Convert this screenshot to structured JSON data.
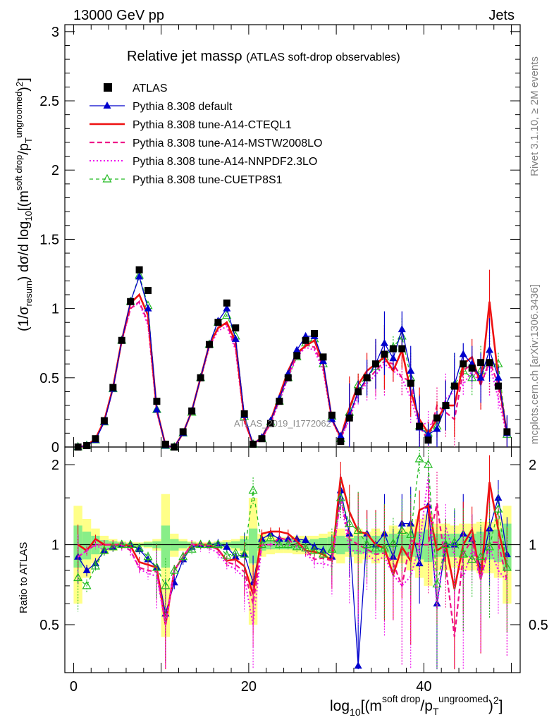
{
  "header": {
    "left": "13000 GeV pp",
    "right": "Jets"
  },
  "title": {
    "main": "Relative jet mass",
    "rho": "ρ",
    "sub": "(ATLAS soft-drop observables)"
  },
  "side": {
    "rivet": "Rivet 3.1.10, ≥ 2M events",
    "mcplots": "mcplots.cern.ch [arXiv:1306.3436]"
  },
  "watermark": "ATLAS_2019_I1772062",
  "axes": {
    "ylabel_main": "(1/σresum) dσ/d log10[(m soft drop/pT ungroomed)2]",
    "ylabel_ratio": "Ratio to ATLAS",
    "xlabel": "log10[(m soft drop/pT ungroomed)2]"
  },
  "legend": [
    {
      "label": "ATLAS",
      "color": "#000000"
    },
    {
      "label": "Pythia 8.308 default",
      "color": "#0000cc"
    },
    {
      "label": "Pythia 8.308 tune-A14-CTEQL1",
      "color": "#ee1111"
    },
    {
      "label": "Pythia 8.308 tune-A14-MSTW2008LO",
      "color": "#ee1188"
    },
    {
      "label": "Pythia 8.308 tune-A14-NNPDF2.3LO",
      "color": "#ee11ee"
    },
    {
      "label": "Pythia 8.308 tune-CUETP8S1",
      "color": "#22bb22"
    }
  ],
  "chart_data": [
    {
      "type": "line",
      "panel": "main",
      "xlim": [
        -1,
        51
      ],
      "ylim": [
        0,
        3.05
      ],
      "x_ticks": [
        0,
        20,
        40
      ],
      "y_ticks": [
        0,
        0.5,
        1,
        1.5,
        2,
        2.5,
        3
      ],
      "y_tick_labels": [
        "0",
        "0.5",
        "1",
        "1.5",
        "2",
        "2.5",
        "3"
      ],
      "x": [
        0.5,
        1.5,
        2.5,
        3.5,
        4.5,
        5.5,
        6.5,
        7.5,
        8.5,
        9.5,
        10.5,
        11.5,
        12.5,
        13.5,
        14.5,
        15.5,
        16.5,
        17.5,
        18.5,
        19.5,
        20.5,
        21.5,
        22.5,
        23.5,
        24.5,
        25.5,
        26.5,
        27.5,
        28.5,
        29.5,
        30.5,
        31.5,
        32.5,
        33.5,
        34.5,
        35.5,
        36.5,
        37.5,
        38.5,
        39.5,
        40.5,
        41.5,
        42.5,
        43.5,
        44.5,
        45.5,
        46.5,
        47.5,
        48.5,
        49.5
      ],
      "series": [
        {
          "name": "ATLAS",
          "style": "points",
          "values": [
            0.0,
            0.01,
            0.06,
            0.19,
            0.43,
            0.77,
            1.05,
            1.28,
            1.13,
            0.33,
            0.02,
            0.0,
            0.11,
            0.26,
            0.5,
            0.74,
            0.9,
            1.04,
            0.86,
            0.24,
            0.02,
            0.06,
            0.17,
            0.33,
            0.5,
            0.66,
            0.77,
            0.82,
            0.65,
            0.23,
            0.04,
            0.21,
            0.4,
            0.5,
            0.6,
            0.67,
            0.71,
            0.71,
            0.46,
            0.15,
            0.05,
            0.21,
            0.3,
            0.44,
            0.6,
            0.57,
            0.61,
            0.61,
            0.44,
            0.11
          ]
        },
        {
          "name": "Pythia 8.308 default",
          "values": [
            0.0,
            0.01,
            0.05,
            0.18,
            0.42,
            0.77,
            1.05,
            1.23,
            1.0,
            0.27,
            0.01,
            0.0,
            0.1,
            0.26,
            0.5,
            0.74,
            0.91,
            1.0,
            0.78,
            0.23,
            0.02,
            0.07,
            0.19,
            0.35,
            0.53,
            0.7,
            0.8,
            0.8,
            0.62,
            0.2,
            0.08,
            0.23,
            0.4,
            0.5,
            0.6,
            0.75,
            0.64,
            0.85,
            0.55,
            0.14,
            0.09,
            0.13,
            0.3,
            0.45,
            0.67,
            0.6,
            0.5,
            0.7,
            0.5,
            0.1
          ]
        },
        {
          "name": "Pythia 8.308 tune-A14-CTEQL1",
          "values": [
            0.0,
            0.01,
            0.06,
            0.19,
            0.43,
            0.77,
            1.04,
            1.1,
            0.95,
            0.27,
            0.01,
            0.0,
            0.1,
            0.26,
            0.5,
            0.74,
            0.86,
            0.9,
            0.76,
            0.2,
            0.02,
            0.07,
            0.19,
            0.37,
            0.55,
            0.68,
            0.73,
            0.77,
            0.6,
            0.2,
            0.07,
            0.28,
            0.45,
            0.55,
            0.6,
            0.65,
            0.55,
            0.7,
            0.4,
            0.2,
            0.1,
            0.2,
            0.3,
            0.3,
            0.6,
            0.65,
            0.45,
            1.05,
            0.5,
            0.09
          ]
        },
        {
          "name": "Pythia 8.308 tune-A14-MSTW2008LO",
          "values": [
            0.0,
            0.01,
            0.06,
            0.19,
            0.43,
            0.77,
            1.0,
            1.05,
            0.9,
            0.26,
            0.01,
            0.0,
            0.1,
            0.26,
            0.5,
            0.73,
            0.86,
            0.89,
            0.72,
            0.19,
            0.02,
            0.06,
            0.17,
            0.35,
            0.52,
            0.66,
            0.74,
            0.72,
            0.58,
            0.2,
            0.06,
            0.22,
            0.4,
            0.48,
            0.55,
            0.62,
            0.6,
            0.5,
            0.48,
            0.15,
            0.05,
            0.3,
            0.25,
            0.2,
            0.55,
            0.6,
            0.45,
            0.62,
            0.45,
            0.08
          ]
        },
        {
          "name": "Pythia 8.308 tune-A14-NNPDF2.3LO",
          "values": [
            0.0,
            0.01,
            0.06,
            0.18,
            0.42,
            0.76,
            1.0,
            1.04,
            0.88,
            0.25,
            0.01,
            0.0,
            0.1,
            0.26,
            0.49,
            0.72,
            0.84,
            0.87,
            0.7,
            0.18,
            0.02,
            0.06,
            0.17,
            0.33,
            0.5,
            0.65,
            0.72,
            0.7,
            0.55,
            0.19,
            0.06,
            0.2,
            0.38,
            0.46,
            0.52,
            0.6,
            0.55,
            0.5,
            0.35,
            0.15,
            0.18,
            0.12,
            0.35,
            0.4,
            0.45,
            0.55,
            0.45,
            0.6,
            0.35,
            0.08
          ]
        },
        {
          "name": "Pythia 8.308 tune-CUETP8S1",
          "values": [
            0.0,
            0.01,
            0.05,
            0.18,
            0.42,
            0.77,
            1.05,
            1.24,
            1.02,
            0.27,
            0.01,
            0.0,
            0.1,
            0.25,
            0.5,
            0.74,
            0.9,
            0.95,
            0.8,
            0.22,
            0.02,
            0.06,
            0.18,
            0.33,
            0.5,
            0.65,
            0.75,
            0.78,
            0.6,
            0.22,
            0.06,
            0.25,
            0.45,
            0.5,
            0.58,
            0.65,
            0.72,
            0.8,
            0.5,
            0.15,
            0.1,
            0.15,
            0.3,
            0.45,
            0.55,
            0.5,
            0.55,
            0.6,
            0.6,
            0.09
          ]
        }
      ]
    },
    {
      "type": "line",
      "panel": "ratio",
      "xlim": [
        -1,
        51
      ],
      "ylim": [
        0.33,
        2.33
      ],
      "x_ticks": [
        0,
        20,
        40
      ],
      "x_tick_labels": [
        "0",
        "20",
        "40"
      ],
      "y_ticks": [
        0.5,
        1,
        2
      ],
      "y_tick_labels": [
        "0.5",
        "1",
        "2"
      ],
      "x": [
        0.5,
        1.5,
        2.5,
        3.5,
        4.5,
        5.5,
        6.5,
        7.5,
        8.5,
        9.5,
        10.5,
        11.5,
        12.5,
        13.5,
        14.5,
        15.5,
        16.5,
        17.5,
        18.5,
        19.5,
        20.5,
        21.5,
        22.5,
        23.5,
        24.5,
        25.5,
        26.5,
        27.5,
        28.5,
        29.5,
        30.5,
        31.5,
        32.5,
        33.5,
        34.5,
        35.5,
        36.5,
        37.5,
        38.5,
        39.5,
        40.5,
        41.5,
        42.5,
        43.5,
        44.5,
        45.5,
        46.5,
        47.5,
        48.5,
        49.5
      ],
      "band_outer": [
        0.6,
        0.75,
        0.85,
        0.92,
        0.95,
        0.97,
        0.98,
        0.98,
        0.97,
        0.95,
        0.45,
        0.9,
        0.95,
        0.97,
        0.98,
        0.98,
        0.97,
        0.96,
        0.95,
        0.92,
        0.5,
        0.9,
        0.92,
        0.93,
        0.93,
        0.92,
        0.92,
        0.92,
        0.9,
        0.88,
        0.85,
        0.9,
        0.85,
        0.88,
        0.85,
        0.88,
        0.82,
        0.85,
        0.8,
        0.75,
        0.7,
        0.8,
        0.8,
        0.82,
        0.8,
        0.8,
        0.78,
        0.78,
        0.75,
        0.6
      ],
      "band_inner": [
        0.82,
        0.88,
        0.92,
        0.96,
        0.97,
        0.98,
        0.99,
        0.99,
        0.98,
        0.97,
        0.82,
        0.95,
        0.97,
        0.98,
        0.99,
        0.99,
        0.98,
        0.98,
        0.97,
        0.95,
        0.85,
        0.95,
        0.96,
        0.96,
        0.96,
        0.96,
        0.96,
        0.95,
        0.94,
        0.93,
        0.92,
        0.94,
        0.92,
        0.93,
        0.92,
        0.93,
        0.9,
        0.91,
        0.9,
        0.88,
        0.86,
        0.9,
        0.9,
        0.9,
        0.9,
        0.9,
        0.88,
        0.88,
        0.86,
        0.8
      ],
      "series": [
        {
          "name": "Pythia 8.308 default",
          "values": [
            0.9,
            0.8,
            0.85,
            0.95,
            0.98,
            1.0,
            1.0,
            0.96,
            0.88,
            0.82,
            0.55,
            0.72,
            0.88,
            0.98,
            1.0,
            1.0,
            1.01,
            0.98,
            0.9,
            0.92,
            0.72,
            1.05,
            1.1,
            1.05,
            1.05,
            1.05,
            1.04,
            0.98,
            0.95,
            0.9,
            1.6,
            1.1,
            0.35,
            1.1,
            1.0,
            1.1,
            0.9,
            1.2,
            1.2,
            0.85,
            1.4,
            0.6,
            1.0,
            1.0,
            1.1,
            1.05,
            0.82,
            1.15,
            1.5,
            0.92
          ]
        },
        {
          "name": "Pythia 8.308 tune-A14-CTEQL1",
          "values": [
            1.0,
            0.95,
            1.05,
            1.0,
            1.0,
            1.0,
            0.99,
            0.86,
            0.84,
            0.82,
            0.5,
            0.8,
            0.9,
            1.0,
            1.0,
            1.0,
            0.96,
            0.87,
            0.88,
            0.83,
            0.65,
            1.1,
            1.12,
            1.12,
            1.1,
            1.03,
            0.95,
            0.94,
            0.92,
            0.87,
            1.8,
            1.33,
            1.12,
            1.1,
            1.0,
            0.97,
            0.77,
            0.98,
            0.87,
            1.35,
            1.4,
            0.95,
            1.0,
            0.68,
            1.0,
            1.14,
            0.74,
            1.72,
            1.14,
            0.82
          ]
        },
        {
          "name": "Pythia 8.308 tune-A14-MSTW2008LO",
          "values": [
            0.9,
            0.95,
            1.0,
            1.0,
            1.0,
            1.0,
            0.95,
            0.82,
            0.8,
            0.79,
            0.5,
            0.8,
            0.9,
            1.0,
            1.0,
            0.99,
            0.96,
            0.86,
            0.84,
            0.79,
            0.6,
            1.0,
            1.0,
            1.06,
            1.04,
            1.0,
            0.96,
            0.88,
            0.89,
            0.87,
            1.5,
            1.05,
            1.0,
            0.96,
            0.92,
            0.93,
            0.85,
            0.7,
            1.04,
            1.0,
            1.0,
            1.43,
            0.83,
            0.45,
            0.92,
            1.05,
            0.74,
            1.02,
            1.02,
            0.73
          ]
        },
        {
          "name": "Pythia 8.308 tune-A14-NNPDF2.3LO",
          "values": [
            0.9,
            0.95,
            1.0,
            0.95,
            0.98,
            0.99,
            0.95,
            0.81,
            0.78,
            0.76,
            0.5,
            0.8,
            0.9,
            1.0,
            0.98,
            0.97,
            0.93,
            0.84,
            0.81,
            0.75,
            0.5,
            1.0,
            1.0,
            1.0,
            1.0,
            0.98,
            0.94,
            0.85,
            0.85,
            0.83,
            1.5,
            0.95,
            0.95,
            0.92,
            0.87,
            0.9,
            0.77,
            0.7,
            0.76,
            1.0,
            1.8,
            0.57,
            1.17,
            0.91,
            0.75,
            0.96,
            0.74,
            0.98,
            0.8,
            0.73
          ]
        },
        {
          "name": "Pythia 8.308 tune-CUETP8S1",
          "values": [
            0.75,
            0.7,
            0.83,
            0.95,
            0.98,
            1.0,
            1.0,
            0.97,
            0.9,
            0.82,
            0.7,
            0.8,
            0.9,
            0.96,
            1.0,
            1.0,
            1.0,
            0.91,
            0.93,
            0.92,
            1.6,
            1.0,
            1.06,
            1.0,
            1.0,
            0.98,
            0.97,
            0.95,
            0.92,
            0.96,
            1.5,
            1.2,
            1.13,
            1.0,
            0.97,
            0.97,
            1.01,
            1.13,
            1.09,
            2.1,
            2.0,
            0.71,
            1.0,
            1.02,
            0.92,
            0.88,
            0.9,
            0.98,
            1.36,
            0.82
          ]
        }
      ]
    }
  ]
}
